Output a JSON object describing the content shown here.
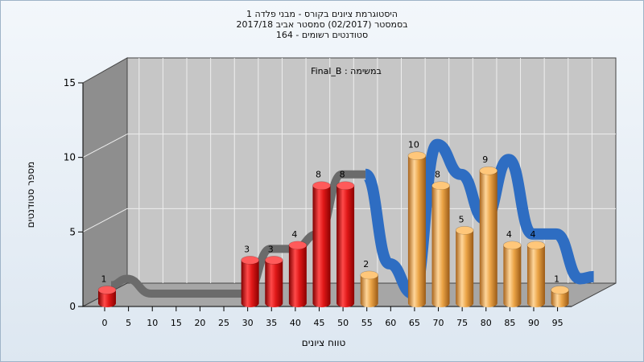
{
  "title_lines": [
    "היסטוגרמת ציונים בקורס - מבני פלדה 1",
    "בסמסטר  (02/2017)  סמסטר אביב 2017/18",
    "סטודנטים רשומים - 164"
  ],
  "chart_data": {
    "type": "bar",
    "task_label": "במשימה : Final_B",
    "xlabel": "טווח ציונים",
    "ylabel": "מספר סטודנטים",
    "ylim": [
      0,
      15
    ],
    "y_ticks": [
      "0",
      "5",
      "10",
      "15"
    ],
    "x_ticks": [
      "0",
      "5",
      "10",
      "15",
      "20",
      "25",
      "30",
      "35",
      "40",
      "45",
      "50",
      "55",
      "60",
      "65",
      "70",
      "75",
      "80",
      "85",
      "90",
      "95"
    ],
    "values": [
      1,
      0,
      0,
      0,
      0,
      0,
      3,
      3,
      4,
      8,
      8,
      2,
      0,
      10,
      8,
      5,
      9,
      4,
      4,
      1
    ],
    "bar_colors": [
      "red",
      "red",
      "red",
      "red",
      "red",
      "red",
      "red",
      "red",
      "red",
      "red",
      "red",
      "gold",
      "gold",
      "gold",
      "gold",
      "gold",
      "gold",
      "gold",
      "gold",
      "gold"
    ],
    "colors": {
      "red": "#d81414",
      "gold": "#e8a03a",
      "ribbon_blue": "#2e6dc2",
      "ribbon_gray": "#6b6b6b",
      "wall": "#c6c6c6",
      "side_wall": "#8e8e8e",
      "floor": "#a6a6a6"
    },
    "grid": true,
    "curve_note": "3D ribbon trend line (gray then blue) drawn behind bars"
  }
}
